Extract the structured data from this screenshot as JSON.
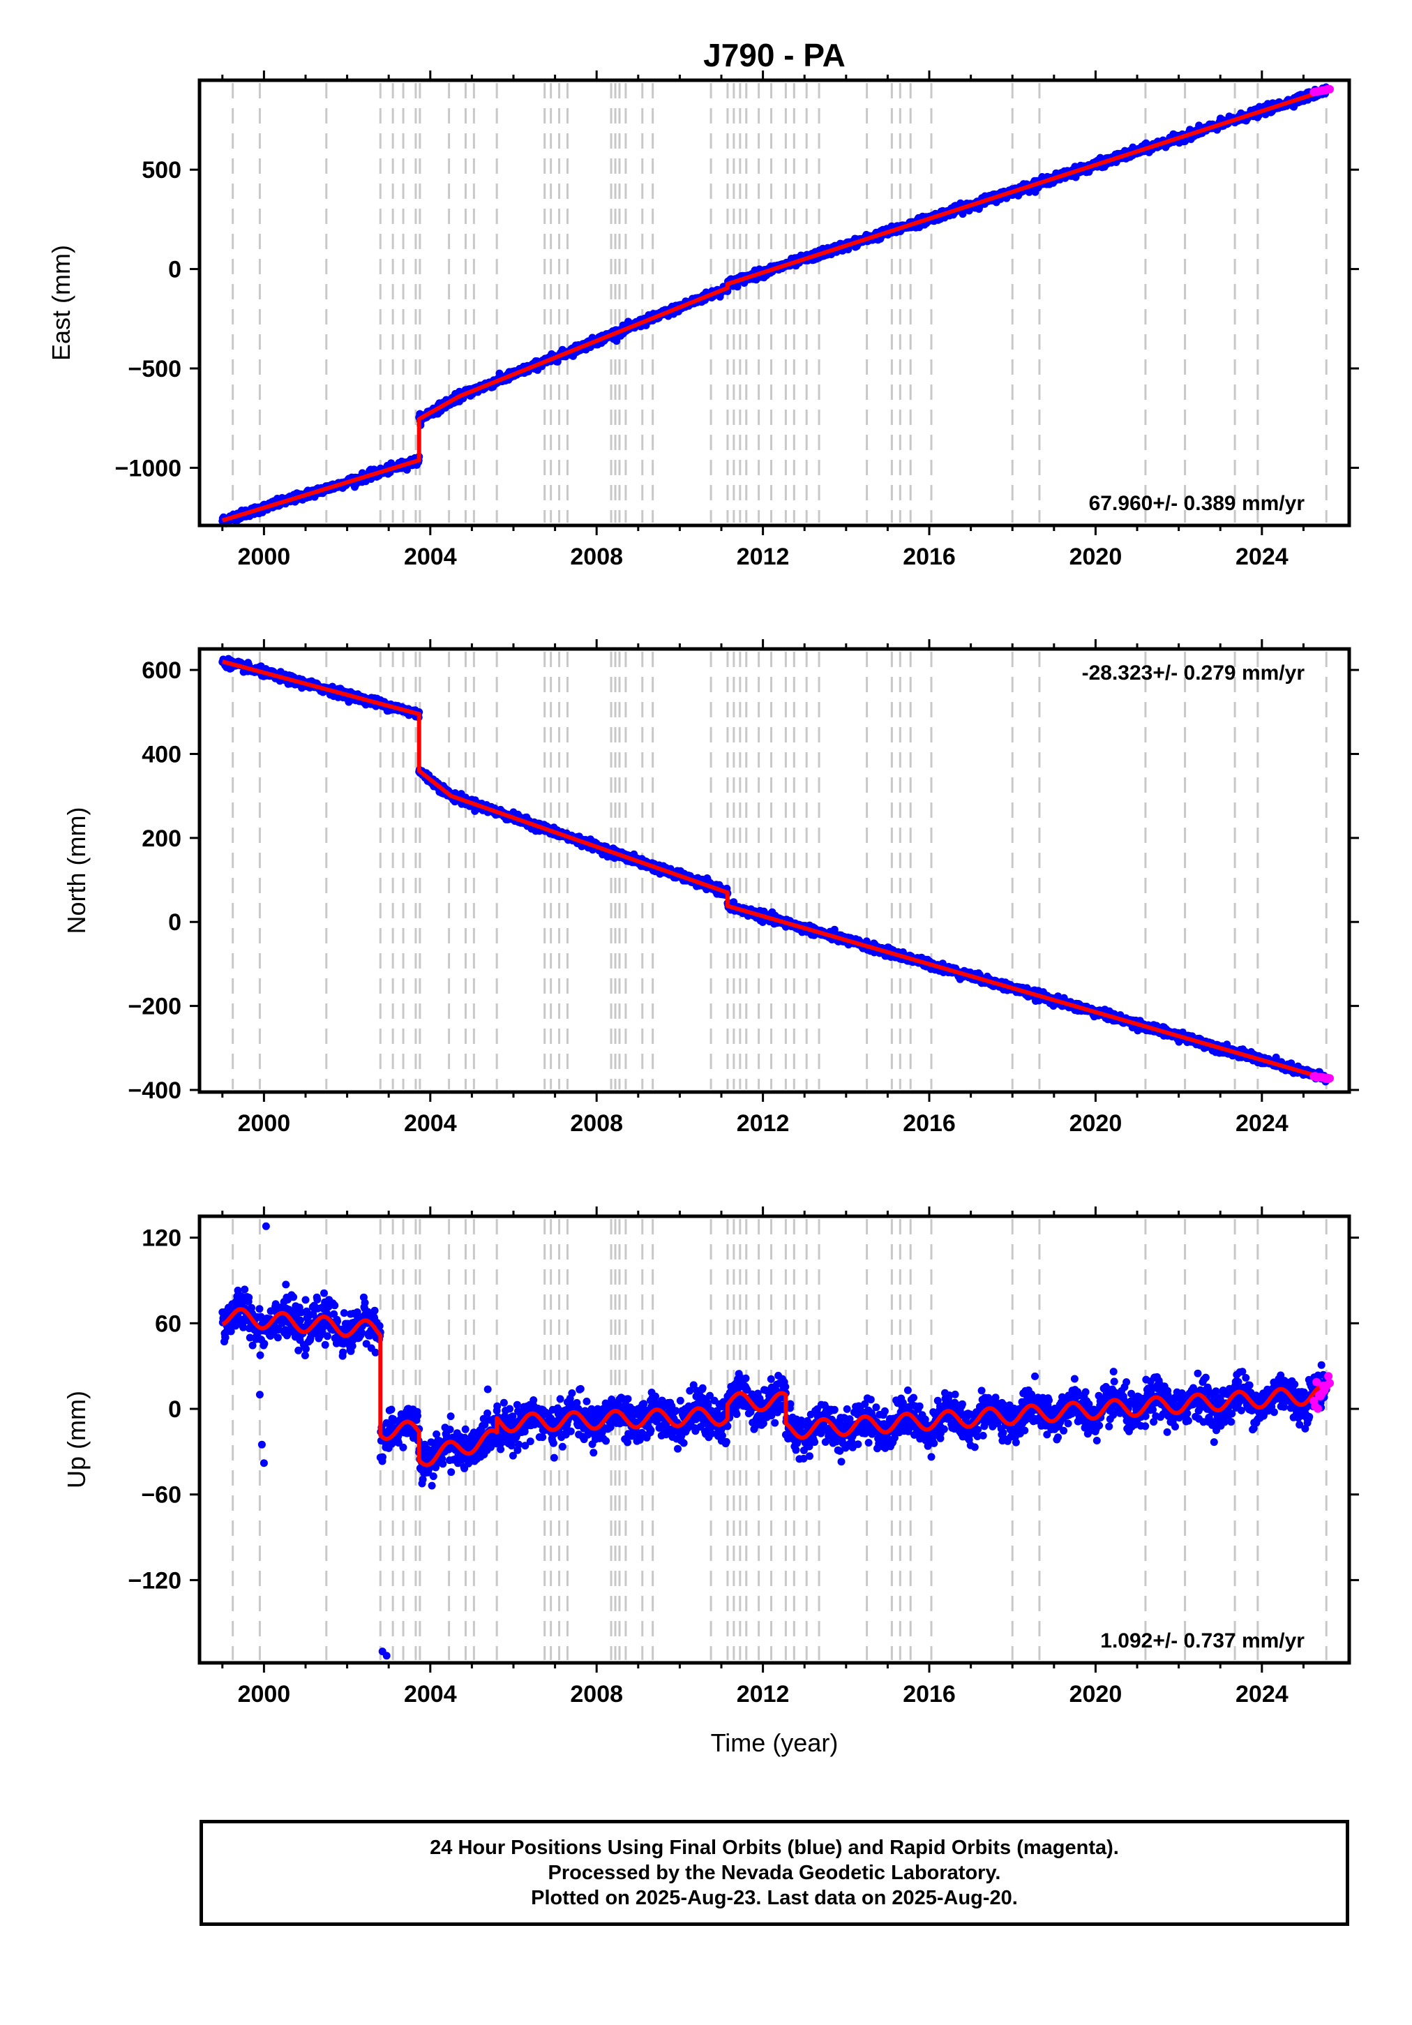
{
  "title": "J790 - PA",
  "xlabel": "Time (year)",
  "x_ticks": [
    "2000",
    "2004",
    "2008",
    "2012",
    "2016",
    "2020",
    "2024"
  ],
  "colors": {
    "final_orbits": "#0000ff",
    "rapid_orbits": "#ff00ff",
    "model": "#ff0000",
    "event_lines": "#c8c8c8"
  },
  "footer": {
    "line1": "24 Hour Positions Using Final Orbits (blue) and Rapid Orbits (magenta).",
    "line2": "Processed by the Nevada Geodetic Laboratory.",
    "line3": "Plotted on 2025-Aug-23. Last data on 2025-Aug-20."
  },
  "chart_data": [
    {
      "type": "scatter",
      "ylabel": "East (mm)",
      "rate_label": "67.960+/- 0.389 mm/yr",
      "y_ticks": [
        "500",
        "0",
        "−500",
        "−1000"
      ],
      "xlim": [
        1998.45,
        2026.1
      ],
      "ylim": [
        -1290,
        950
      ],
      "vertical_event_lines": [
        1999.25,
        1999.9,
        2001.5,
        2002.8,
        2003.1,
        2003.35,
        2003.65,
        2003.75,
        2004.45,
        2004.85,
        2005.05,
        2005.6,
        2006.75,
        2006.9,
        2007.1,
        2007.3,
        2008.35,
        2008.45,
        2008.55,
        2008.7,
        2009.1,
        2009.35,
        2010.75,
        2011.15,
        2011.3,
        2011.45,
        2011.6,
        2011.9,
        2012.2,
        2012.55,
        2012.75,
        2013.05,
        2013.35,
        2014.5,
        2015.1,
        2015.3,
        2015.55,
        2016.05,
        2018.0,
        2018.65,
        2021.2,
        2022.15,
        2023.35,
        2023.9,
        2025.55
      ],
      "series": [
        {
          "name": "Final Orbits (blue)",
          "segments": [
            {
              "x": [
                1999.0,
                2003.73
              ],
              "y": [
                -1265,
                -962
              ]
            },
            {
              "x": [
                2003.73,
                2004.7
              ],
              "y": [
                -755,
                -640
              ]
            },
            {
              "x": [
                2004.7,
                2011.15
              ],
              "y": [
                -640,
                -95
              ]
            },
            {
              "x": [
                2011.15,
                2025.55
              ],
              "y": [
                -75,
                900
              ]
            }
          ]
        },
        {
          "name": "Rapid Orbits (magenta)",
          "x": [
            2025.25,
            2025.63
          ],
          "y": [
            890,
            905
          ]
        }
      ]
    },
    {
      "type": "scatter",
      "ylabel": "North (mm)",
      "rate_label": "-28.323+/- 0.279 mm/yr",
      "y_ticks": [
        "600",
        "400",
        "200",
        "0",
        "−200",
        "−400"
      ],
      "xlim": [
        1998.45,
        2026.1
      ],
      "ylim": [
        -405,
        650
      ],
      "vertical_event_lines": [
        1999.25,
        1999.9,
        2001.5,
        2002.8,
        2003.1,
        2003.35,
        2003.65,
        2003.75,
        2004.45,
        2004.85,
        2005.05,
        2005.6,
        2006.75,
        2006.9,
        2007.1,
        2007.3,
        2008.35,
        2008.45,
        2008.55,
        2008.7,
        2009.1,
        2009.35,
        2010.75,
        2011.15,
        2011.3,
        2011.45,
        2011.6,
        2011.9,
        2012.2,
        2012.55,
        2012.75,
        2013.05,
        2013.35,
        2014.5,
        2015.1,
        2015.3,
        2015.55,
        2016.05,
        2018.0,
        2018.65,
        2021.2,
        2022.15,
        2023.35,
        2023.9,
        2025.55
      ],
      "series": [
        {
          "name": "Final Orbits (blue)",
          "segments": [
            {
              "x": [
                1999.0,
                2003.73
              ],
              "y": [
                620,
                495
              ]
            },
            {
              "x": [
                2003.73,
                2004.5
              ],
              "y": [
                360,
                300
              ]
            },
            {
              "x": [
                2004.5,
                2011.15
              ],
              "y": [
                300,
                70
              ]
            },
            {
              "x": [
                2011.15,
                2025.55
              ],
              "y": [
                38,
                -373
              ]
            }
          ]
        },
        {
          "name": "Rapid Orbits (magenta)",
          "x": [
            2025.25,
            2025.63
          ],
          "y": [
            -368,
            -373
          ]
        }
      ]
    },
    {
      "type": "scatter",
      "ylabel": "Up (mm)",
      "rate_label": "1.092+/- 0.737 mm/yr",
      "y_ticks": [
        "120",
        "60",
        "0",
        "−60",
        "−120"
      ],
      "xlim": [
        1998.45,
        2026.1
      ],
      "ylim": [
        -178,
        135
      ],
      "vertical_event_lines": [
        1999.25,
        1999.9,
        2001.5,
        2002.8,
        2003.1,
        2003.35,
        2003.65,
        2003.75,
        2004.45,
        2004.85,
        2005.05,
        2005.6,
        2006.75,
        2006.9,
        2007.1,
        2007.3,
        2008.35,
        2008.45,
        2008.55,
        2008.7,
        2009.1,
        2009.35,
        2010.75,
        2011.15,
        2011.3,
        2011.45,
        2011.6,
        2011.9,
        2012.2,
        2012.55,
        2012.75,
        2013.05,
        2013.35,
        2014.5,
        2015.1,
        2015.3,
        2015.55,
        2016.05,
        2018.0,
        2018.65,
        2021.2,
        2022.15,
        2023.35,
        2023.9,
        2025.55
      ],
      "series": [
        {
          "name": "Final Orbits (blue)",
          "segments": [
            {
              "x": [
                1999.0,
                2002.8
              ],
              "y": [
                65,
                55
              ]
            },
            {
              "x": [
                2002.8,
                2003.73
              ],
              "y": [
                -15,
                -15
              ]
            },
            {
              "x": [
                2003.73,
                2005.6
              ],
              "y": [
                -35,
                -20
              ]
            },
            {
              "x": [
                2005.6,
                2011.15
              ],
              "y": [
                -10,
                -5
              ]
            },
            {
              "x": [
                2011.15,
                2012.55
              ],
              "y": [
                5,
                5
              ]
            },
            {
              "x": [
                2012.55,
                2025.55
              ],
              "y": [
                -15,
                10
              ]
            }
          ],
          "outliers": {
            "x": [
              1999.9,
              1999.95,
              2000.0,
              2000.05,
              2002.85,
              2002.95
            ],
            "y": [
              10,
              -25,
              -38,
              128,
              -170,
              -173
            ]
          }
        },
        {
          "name": "Rapid Orbits (magenta)",
          "x": [
            2025.25,
            2025.63
          ],
          "y": [
            5,
            20
          ]
        }
      ]
    }
  ]
}
